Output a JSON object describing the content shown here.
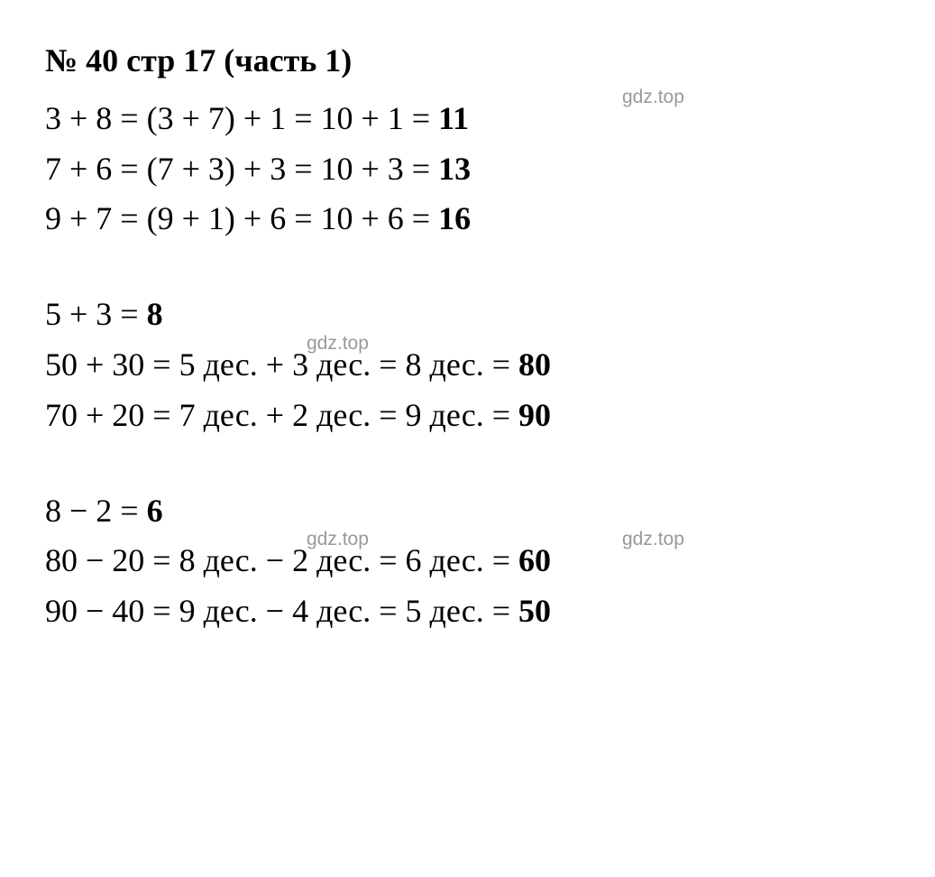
{
  "title": "№ 40 стр 17 (часть 1)",
  "blocks": [
    {
      "lines": [
        {
          "text": "3 + 8 = (3 + 7) + 1 = 10 + 1 = ",
          "result": "11",
          "watermarks": [
            {
              "cls": "wm1",
              "text": "gdz.top"
            }
          ]
        },
        {
          "text": "7 + 6 = (7 + 3) + 3 = 10 + 3 = ",
          "result": "13",
          "watermarks": []
        },
        {
          "text": "9 + 7 = (9 + 1) + 6 = 10 + 6 = ",
          "result": "16",
          "watermarks": []
        }
      ]
    },
    {
      "lines": [
        {
          "text": "5 + 3 = ",
          "result": "8",
          "watermarks": []
        },
        {
          "text": "50 + 30 = 5 дес. + 3 дес. = 8 дес. = ",
          "result": "80",
          "watermarks": [
            {
              "cls": "wm2",
              "text": "gdz.top"
            }
          ]
        },
        {
          "text": "70 + 20 = 7 дес. + 2 дес. = 9 дес. = ",
          "result": "90",
          "watermarks": []
        }
      ]
    },
    {
      "lines": [
        {
          "text": "8 − 2 = ",
          "result": "6",
          "watermarks": []
        },
        {
          "text": "80 − 20 = 8 дес. − 2 дес. = 6 дес. = ",
          "result": "60",
          "watermarks": [
            {
              "cls": "wm3a",
              "text": "gdz.top"
            },
            {
              "cls": "wm3b",
              "text": "gdz.top"
            }
          ]
        },
        {
          "text": "90 − 40 = 9 дес. − 4 дес. = 5 дес. = ",
          "result": "50",
          "watermarks": []
        }
      ]
    }
  ],
  "colors": {
    "text": "#000000",
    "background": "#ffffff",
    "watermark": "#999999"
  }
}
